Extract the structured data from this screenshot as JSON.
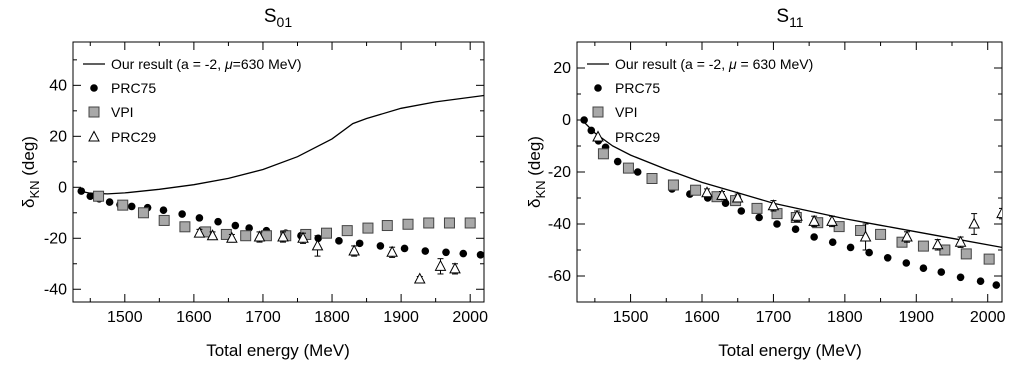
{
  "chart_data": [
    {
      "type": "scatter",
      "title": "S",
      "title_sub": "01",
      "xlabel": "Total energy (MeV)",
      "ylabel": "δ",
      "ylabel_sub": "KN",
      "ylabel_unit": "(deg)",
      "xlim": [
        1425,
        2020
      ],
      "ylim": [
        -45,
        57
      ],
      "xticks": [
        1500,
        1600,
        1700,
        1800,
        1900,
        2000
      ],
      "yticks": [
        -40,
        -20,
        0,
        20,
        40
      ],
      "legend_position": "top-left",
      "series": [
        {
          "name": "Our result (a = -2, μ=630 MeV)",
          "marker": "line",
          "points": [
            [
              1435,
              -1.5
            ],
            [
              1450,
              -2.3
            ],
            [
              1475,
              -2.6
            ],
            [
              1500,
              -2.2
            ],
            [
              1550,
              -0.8
            ],
            [
              1600,
              1.0
            ],
            [
              1650,
              3.5
            ],
            [
              1700,
              7
            ],
            [
              1750,
              12
            ],
            [
              1800,
              19
            ],
            [
              1830,
              25
            ],
            [
              1850,
              27
            ],
            [
              1900,
              31
            ],
            [
              1950,
              33.5
            ],
            [
              2020,
              36
            ]
          ]
        },
        {
          "name": "PRC75",
          "marker": "circle",
          "points": [
            [
              1437,
              -1.5
            ],
            [
              1450,
              -3.5
            ],
            [
              1463,
              -4.5
            ],
            [
              1478,
              -5.8
            ],
            [
              1493,
              -6.8
            ],
            [
              1510,
              -7.5
            ],
            [
              1533,
              -8
            ],
            [
              1556,
              -9
            ],
            [
              1583,
              -10.5
            ],
            [
              1608,
              -12
            ],
            [
              1635,
              -13.5
            ],
            [
              1660,
              -15
            ],
            [
              1680,
              -16
            ],
            [
              1705,
              -17
            ],
            [
              1733,
              -18
            ],
            [
              1755,
              -19
            ],
            [
              1780,
              -20
            ],
            [
              1810,
              -21
            ],
            [
              1840,
              -22
            ],
            [
              1870,
              -23
            ],
            [
              1905,
              -24
            ],
            [
              1935,
              -25
            ],
            [
              1965,
              -25.5
            ],
            [
              1990,
              -26
            ],
            [
              2015,
              -26.5
            ]
          ]
        },
        {
          "name": "VPI",
          "marker": "square",
          "points": [
            [
              1462,
              -3.5
            ],
            [
              1497,
              -7
            ],
            [
              1527,
              -10
            ],
            [
              1557,
              -13
            ],
            [
              1587,
              -15.5
            ],
            [
              1617,
              -17.5
            ],
            [
              1647,
              -18.5
            ],
            [
              1675,
              -19
            ],
            [
              1705,
              -19
            ],
            [
              1733,
              -19
            ],
            [
              1762,
              -18.5
            ],
            [
              1792,
              -18
            ],
            [
              1822,
              -17
            ],
            [
              1852,
              -16
            ],
            [
              1880,
              -15
            ],
            [
              1910,
              -14.5
            ],
            [
              1940,
              -14
            ],
            [
              1970,
              -14
            ],
            [
              2000,
              -14
            ]
          ]
        },
        {
          "name": "PRC29",
          "marker": "triangle",
          "points": [
            [
              1608,
              -18,
              1.5
            ],
            [
              1627,
              -19,
              1.5
            ],
            [
              1655,
              -20,
              1.5
            ],
            [
              1695,
              -19.5,
              2
            ],
            [
              1729,
              -19.5,
              2
            ],
            [
              1758,
              -20,
              2
            ],
            [
              1779,
              -23,
              4
            ],
            [
              1832,
              -25,
              2
            ],
            [
              1887,
              -25.5,
              2
            ],
            [
              1927,
              -36,
              1
            ],
            [
              1957,
              -31,
              3
            ],
            [
              1978,
              -32,
              2
            ]
          ]
        }
      ]
    },
    {
      "type": "scatter",
      "title": "S",
      "title_sub": "11",
      "xlabel": "Total energy (MeV)",
      "ylabel": "δ",
      "ylabel_sub": "KN",
      "ylabel_unit": "(deg)",
      "xlim": [
        1425,
        2020
      ],
      "ylim": [
        -70,
        30
      ],
      "xticks": [
        1500,
        1600,
        1700,
        1800,
        1900,
        2000
      ],
      "yticks": [
        -60,
        -40,
        -20,
        0,
        20
      ],
      "legend_position": "top-left",
      "series": [
        {
          "name": "Our result (a = -2, μ = 630 MeV)",
          "marker": "line",
          "points": [
            [
              1432,
              0
            ],
            [
              1450,
              -5
            ],
            [
              1475,
              -10
            ],
            [
              1500,
              -13.5
            ],
            [
              1550,
              -19
            ],
            [
              1600,
              -24
            ],
            [
              1650,
              -28
            ],
            [
              1700,
              -32
            ],
            [
              1750,
              -35
            ],
            [
              1800,
              -38
            ],
            [
              1850,
              -40.5
            ],
            [
              1900,
              -43
            ],
            [
              1950,
              -45.5
            ],
            [
              2020,
              -49
            ]
          ]
        },
        {
          "name": "PRC75",
          "marker": "circle",
          "points": [
            [
              1435,
              0
            ],
            [
              1445,
              -4
            ],
            [
              1455,
              -8
            ],
            [
              1465,
              -10.5
            ],
            [
              1482,
              -16
            ],
            [
              1497,
              -18
            ],
            [
              1510,
              -20
            ],
            [
              1530,
              -23
            ],
            [
              1558,
              -26.5
            ],
            [
              1583,
              -28.5
            ],
            [
              1608,
              -30
            ],
            [
              1633,
              -32
            ],
            [
              1655,
              -35
            ],
            [
              1680,
              -37.5
            ],
            [
              1705,
              -40
            ],
            [
              1731,
              -42
            ],
            [
              1757,
              -45
            ],
            [
              1783,
              -47
            ],
            [
              1808,
              -49
            ],
            [
              1834,
              -51
            ],
            [
              1860,
              -53
            ],
            [
              1886,
              -55
            ],
            [
              1910,
              -57
            ],
            [
              1935,
              -58.5
            ],
            [
              1962,
              -60.5
            ],
            [
              1990,
              -62
            ],
            [
              2012,
              -63.5
            ]
          ]
        },
        {
          "name": "VPI",
          "marker": "square",
          "points": [
            [
              1462,
              -13
            ],
            [
              1497,
              -18.5
            ],
            [
              1530,
              -22.5
            ],
            [
              1560,
              -25
            ],
            [
              1591,
              -27
            ],
            [
              1621,
              -29.5
            ],
            [
              1647,
              -31
            ],
            [
              1677,
              -34
            ],
            [
              1705,
              -36
            ],
            [
              1732,
              -37.5
            ],
            [
              1762,
              -39.5
            ],
            [
              1792,
              -41
            ],
            [
              1822,
              -42.5
            ],
            [
              1850,
              -44
            ],
            [
              1880,
              -47
            ],
            [
              1910,
              -48.5
            ],
            [
              1940,
              -50
            ],
            [
              1970,
              -51.5
            ],
            [
              2002,
              -53.5
            ]
          ]
        },
        {
          "name": "PRC29",
          "marker": "triangle",
          "points": [
            [
              1607,
              -28,
              1.5
            ],
            [
              1628,
              -29,
              1.5
            ],
            [
              1650,
              -30,
              1.5
            ],
            [
              1700,
              -33,
              2
            ],
            [
              1733,
              -37,
              2
            ],
            [
              1757,
              -39,
              2
            ],
            [
              1782,
              -39,
              2
            ],
            [
              1829,
              -45,
              5
            ],
            [
              1887,
              -45,
              2
            ],
            [
              1930,
              -48,
              2
            ],
            [
              1962,
              -47,
              2
            ],
            [
              1981,
              -40,
              4
            ],
            [
              2020,
              -36,
              2
            ]
          ]
        }
      ]
    }
  ]
}
